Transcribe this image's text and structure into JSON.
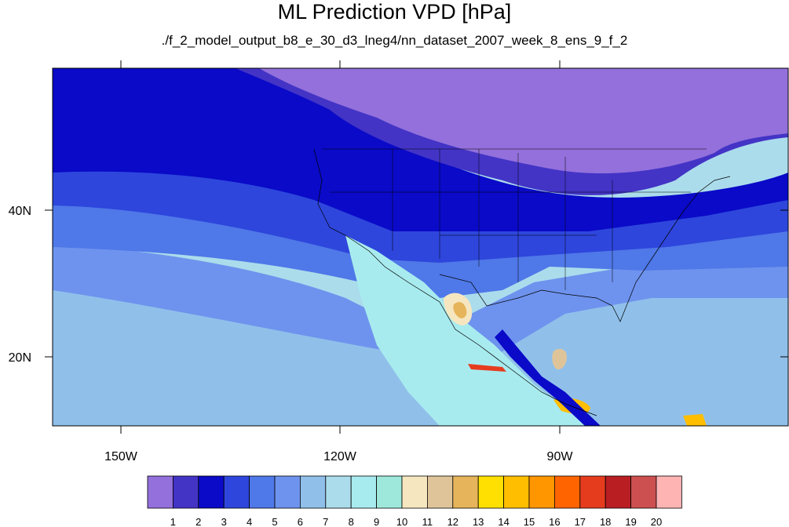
{
  "title": "ML Prediction VPD [hPa]",
  "subtitle": "./f_2_model_output_b8_e_30_d3_lneg4/nn_dataset_2007_week_8_ens_9_f_2",
  "axes": {
    "lon_labels": [
      "150W",
      "120W",
      "90W"
    ],
    "lat_labels": [
      "40N",
      "20N"
    ]
  },
  "colorbar": {
    "labels": [
      "1",
      "2",
      "3",
      "4",
      "5",
      "6",
      "7",
      "8",
      "9",
      "10",
      "11",
      "12",
      "13",
      "14",
      "15",
      "16",
      "17",
      "18",
      "19",
      "20"
    ],
    "colors": [
      "#9370db",
      "#4334c6",
      "#0a0ac8",
      "#2e46dc",
      "#4f78e8",
      "#6e93ee",
      "#90c0ea",
      "#abdcec",
      "#a8ebef",
      "#9de8db",
      "#f5e6c0",
      "#dfc49a",
      "#e6b45a",
      "#ffe000",
      "#ffbe00",
      "#ff9600",
      "#ff6400",
      "#e63c1e",
      "#b91e23",
      "#cd5050",
      "#ffb4b4"
    ]
  },
  "colors": {
    "land_north": "#9370db",
    "ocean_north": "#0a0ac8",
    "ocean_mid": "#6e93ee",
    "ocean_south": "#abdcec"
  }
}
